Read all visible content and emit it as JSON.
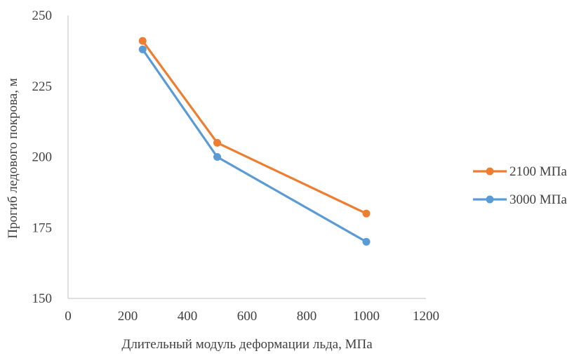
{
  "chart_data": {
    "type": "line",
    "title": "",
    "xlabel": "Длительный модуль деформации льда, МПа",
    "ylabel": "Прогиб ледового покрова, м",
    "xlim": [
      0,
      1200
    ],
    "ylim": [
      150,
      250
    ],
    "xticks": [
      0,
      200,
      400,
      600,
      800,
      1000,
      1200
    ],
    "yticks": [
      150,
      175,
      200,
      225,
      250
    ],
    "x_tick_labels": [
      "0",
      "200",
      "400",
      "600",
      "800",
      "1000",
      "1200"
    ],
    "y_tick_labels": [
      "150",
      "175",
      "200",
      "225",
      "250"
    ],
    "grid": false,
    "legend_position": "right",
    "series": [
      {
        "name": "2100 МПа",
        "color": "#ED7D31",
        "x": [
          250,
          500,
          1000
        ],
        "y": [
          241,
          205,
          180
        ]
      },
      {
        "name": "3000 МПа",
        "color": "#5B9BD5",
        "x": [
          250,
          500,
          1000
        ],
        "y": [
          238,
          200,
          170
        ]
      }
    ]
  }
}
